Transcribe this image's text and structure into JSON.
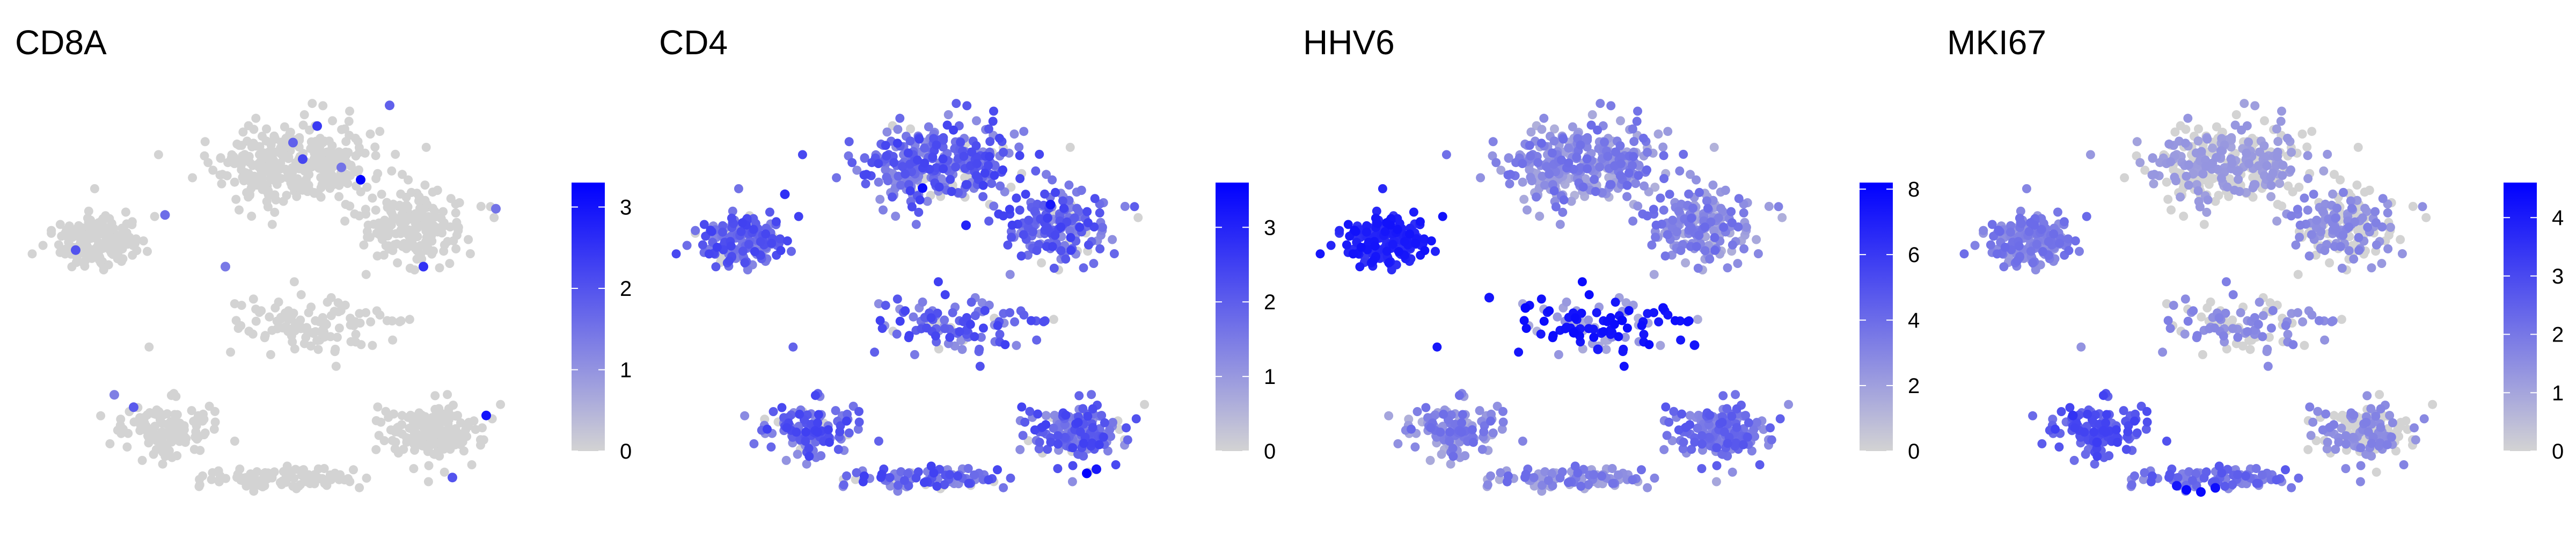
{
  "colors": {
    "low": "#D3D3D3",
    "high": "#0000FF",
    "text": "#000000",
    "background": "#FFFFFF"
  },
  "chart_data": [
    {
      "type": "scatter",
      "title": "CD8A",
      "xlabel": "",
      "ylabel": "",
      "grid": false,
      "legend": "right",
      "colorbar": {
        "min": 0,
        "max": 3.3,
        "ticks": [
          0,
          1,
          2,
          3
        ],
        "tick_labels": [
          "0",
          "1",
          "2",
          "3"
        ]
      },
      "expression_profile": "sparse",
      "highlights": [
        {
          "x": 0.36,
          "y": 0.52,
          "value": 3.3
        },
        {
          "x": 0.88,
          "y": -0.62,
          "value": 3.0
        },
        {
          "x": 0.62,
          "y": 0.1,
          "value": 2.5
        },
        {
          "x": 0.18,
          "y": 0.78,
          "value": 2.4
        },
        {
          "x": 0.12,
          "y": 0.62,
          "value": 2.2
        },
        {
          "x": -0.82,
          "y": 0.18,
          "value": 2.0
        },
        {
          "x": 0.74,
          "y": -0.92,
          "value": 2.0
        },
        {
          "x": -0.58,
          "y": -0.58,
          "value": 1.9
        },
        {
          "x": 0.08,
          "y": 0.7,
          "value": 1.8
        },
        {
          "x": 0.48,
          "y": 0.88,
          "value": 1.8
        },
        {
          "x": -0.45,
          "y": 0.35,
          "value": 1.6
        },
        {
          "x": 0.92,
          "y": 0.38,
          "value": 1.5
        },
        {
          "x": 0.28,
          "y": 0.58,
          "value": 1.5
        },
        {
          "x": -0.2,
          "y": 0.1,
          "value": 1.4
        },
        {
          "x": -0.66,
          "y": -0.52,
          "value": 1.3
        }
      ]
    },
    {
      "type": "scatter",
      "title": "CD4",
      "xlabel": "",
      "ylabel": "",
      "grid": false,
      "legend": "right",
      "colorbar": {
        "min": 0,
        "max": 3.6,
        "ticks": [
          0,
          1,
          2,
          3
        ],
        "tick_labels": [
          "0",
          "1",
          "2",
          "3"
        ]
      },
      "expression_profile": "broad",
      "highlights": [
        {
          "x": 0.7,
          "y": -0.9,
          "value": 3.6
        },
        {
          "x": 0.02,
          "y": 0.48,
          "value": 3.4
        },
        {
          "x": 0.55,
          "y": 0.4,
          "value": 3.2
        },
        {
          "x": 0.74,
          "y": -0.88,
          "value": 3.2
        },
        {
          "x": 0.2,
          "y": 0.3,
          "value": 3.0
        },
        {
          "x": -0.55,
          "y": 0.45,
          "value": 2.8
        }
      ]
    },
    {
      "type": "scatter",
      "title": "HHV6",
      "xlabel": "",
      "ylabel": "",
      "grid": false,
      "legend": "right",
      "colorbar": {
        "min": 0,
        "max": 8.2,
        "ticks": [
          0,
          2,
          4,
          6,
          8
        ],
        "tick_labels": [
          "0",
          "2",
          "4",
          "6",
          "8"
        ]
      },
      "expression_profile": "high-left-and-band",
      "highlights": [
        {
          "x": -0.15,
          "y": -0.1,
          "value": 8.0
        },
        {
          "x": 0.05,
          "y": -0.22,
          "value": 7.8
        },
        {
          "x": 0.25,
          "y": -0.16,
          "value": 7.9
        },
        {
          "x": 0.42,
          "y": -0.1,
          "value": 7.6
        },
        {
          "x": 0.55,
          "y": -0.28,
          "value": 7.5
        },
        {
          "x": -0.3,
          "y": -0.05,
          "value": 7.4
        },
        {
          "x": 0.15,
          "y": -0.3,
          "value": 7.2
        }
      ]
    },
    {
      "type": "scatter",
      "title": "MKI67",
      "xlabel": "",
      "ylabel": "",
      "grid": false,
      "legend": "right",
      "colorbar": {
        "min": 0,
        "max": 4.6,
        "ticks": [
          0,
          1,
          2,
          3,
          4
        ],
        "tick_labels": [
          "0",
          "1",
          "2",
          "3",
          "4"
        ]
      },
      "expression_profile": "lower-left-cluster",
      "highlights": [
        {
          "x": -0.08,
          "y": -0.98,
          "value": 4.5
        },
        {
          "x": -0.02,
          "y": -0.99,
          "value": 4.4
        },
        {
          "x": 0.04,
          "y": -0.97,
          "value": 4.3
        },
        {
          "x": -0.12,
          "y": -0.96,
          "value": 4.1
        },
        {
          "x": -0.55,
          "y": -0.62,
          "value": 3.5
        },
        {
          "x": -0.45,
          "y": -0.75,
          "value": 3.3
        }
      ]
    }
  ]
}
